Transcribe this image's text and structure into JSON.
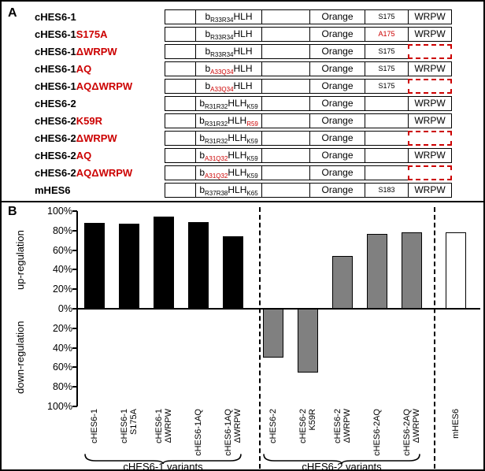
{
  "panels": {
    "a_label": "A",
    "b_label": "B"
  },
  "constructs": [
    {
      "name": "cHES6-1",
      "mut": "",
      "b_sub": "R33R34",
      "b_sub_red": false,
      "hlh_sub": "",
      "hlh_sub_red": false,
      "orange": "Orange",
      "site": "S175",
      "site_red": false,
      "wrpw": "WRPW",
      "wrpw_deleted": false
    },
    {
      "name": "cHES6-1",
      "mut": "S175A",
      "b_sub": "R33R34",
      "b_sub_red": false,
      "hlh_sub": "",
      "hlh_sub_red": false,
      "orange": "Orange",
      "site": "A175",
      "site_red": true,
      "wrpw": "WRPW",
      "wrpw_deleted": false
    },
    {
      "name": "cHES6-1",
      "mut": "ΔWRPW",
      "b_sub": "R33R34",
      "b_sub_red": false,
      "hlh_sub": "",
      "hlh_sub_red": false,
      "orange": "Orange",
      "site": "S175",
      "site_red": false,
      "wrpw": "",
      "wrpw_deleted": true
    },
    {
      "name": "cHES6-1",
      "mut": "AQ",
      "b_sub": "A33Q34",
      "b_sub_red": true,
      "hlh_sub": "",
      "hlh_sub_red": false,
      "orange": "Orange",
      "site": "S175",
      "site_red": false,
      "wrpw": "WRPW",
      "wrpw_deleted": false
    },
    {
      "name": "cHES6-1",
      "mut": "AQΔWRPW",
      "b_sub": "A33Q34",
      "b_sub_red": true,
      "hlh_sub": "",
      "hlh_sub_red": false,
      "orange": "Orange",
      "site": "S175",
      "site_red": false,
      "wrpw": "",
      "wrpw_deleted": true
    },
    {
      "name": "cHES6-2",
      "mut": "",
      "b_sub": "R31R32",
      "b_sub_red": false,
      "hlh_sub": "K59",
      "hlh_sub_red": false,
      "orange": "Orange",
      "site": "",
      "site_red": false,
      "wrpw": "WRPW",
      "wrpw_deleted": false
    },
    {
      "name": "cHES6-2",
      "mut": "K59R",
      "b_sub": "R31R32",
      "b_sub_red": false,
      "hlh_sub": "R59",
      "hlh_sub_red": true,
      "orange": "Orange",
      "site": "",
      "site_red": false,
      "wrpw": "WRPW",
      "wrpw_deleted": false
    },
    {
      "name": "cHES6-2",
      "mut": "ΔWRPW",
      "b_sub": "R31R32",
      "b_sub_red": false,
      "hlh_sub": "K59",
      "hlh_sub_red": false,
      "orange": "Orange",
      "site": "",
      "site_red": false,
      "wrpw": "",
      "wrpw_deleted": true
    },
    {
      "name": "cHES6-2",
      "mut": "AQ",
      "b_sub": "A31Q32",
      "b_sub_red": true,
      "hlh_sub": "K59",
      "hlh_sub_red": false,
      "orange": "Orange",
      "site": "",
      "site_red": false,
      "wrpw": "WRPW",
      "wrpw_deleted": false
    },
    {
      "name": "cHES6-2",
      "mut": "AQΔWRPW",
      "b_sub": "A31Q32",
      "b_sub_red": true,
      "hlh_sub": "K59",
      "hlh_sub_red": false,
      "orange": "Orange",
      "site": "",
      "site_red": false,
      "wrpw": "",
      "wrpw_deleted": true
    },
    {
      "name": "mHES6",
      "mut": "",
      "b_sub": "R37R38",
      "b_sub_red": false,
      "hlh_sub": "K65",
      "hlh_sub_red": false,
      "orange": "Orange",
      "site": "S183",
      "site_red": false,
      "wrpw": "WRPW",
      "wrpw_deleted": false
    }
  ],
  "chart_data": {
    "type": "bar",
    "categories": [
      "cHES6-1",
      "cHES6-1 S175A",
      "cHES6-1 ΔWRPW",
      "cHES6-1AQ",
      "cHES6-1AQ ΔWRPW",
      "cHES6-2",
      "cHES6-2 K59R",
      "cHES6-2 ΔWRPW",
      "cHES6-2AQ",
      "cHES6-2AQ ΔWRPW",
      "mHES6"
    ],
    "category_lines": [
      [
        "cHES6-1"
      ],
      [
        "cHES6-1",
        "S175A"
      ],
      [
        "cHES6-1",
        "ΔWRPW"
      ],
      [
        "cHES6-1AQ"
      ],
      [
        "cHES6-1AQ",
        "ΔWRPW"
      ],
      [
        "cHES6-2"
      ],
      [
        "cHES6-2",
        "K59R"
      ],
      [
        "cHES6-2",
        "ΔWRPW"
      ],
      [
        "cHES6-2AQ"
      ],
      [
        "cHES6-2AQ",
        "ΔWRPW"
      ],
      [
        "mHES6"
      ]
    ],
    "values": [
      88,
      87,
      94,
      89,
      74,
      -50,
      -65,
      54,
      77,
      78,
      78
    ],
    "bar_colors": [
      "#000000",
      "#000000",
      "#000000",
      "#000000",
      "#000000",
      "#808080",
      "#808080",
      "#808080",
      "#808080",
      "#808080",
      "#ffffff"
    ],
    "bar_border": "#000000",
    "ylim": [
      -100,
      100
    ],
    "ylabel_up": "up-regulation",
    "ylabel_down": "down-regulation",
    "y_ticks_up": [
      100,
      80,
      60,
      40,
      20,
      0
    ],
    "y_ticks_down": [
      20,
      40,
      60,
      80,
      100
    ],
    "tick_suffix": "%",
    "group_labels": [
      "cHES6-1 variants",
      "cHES6-2 variants"
    ],
    "colors": {
      "hes6_1_group": "#000000",
      "hes6_2_group": "#808080",
      "mhes6": "#ffffff",
      "mutation_red": "#cc0000"
    }
  }
}
